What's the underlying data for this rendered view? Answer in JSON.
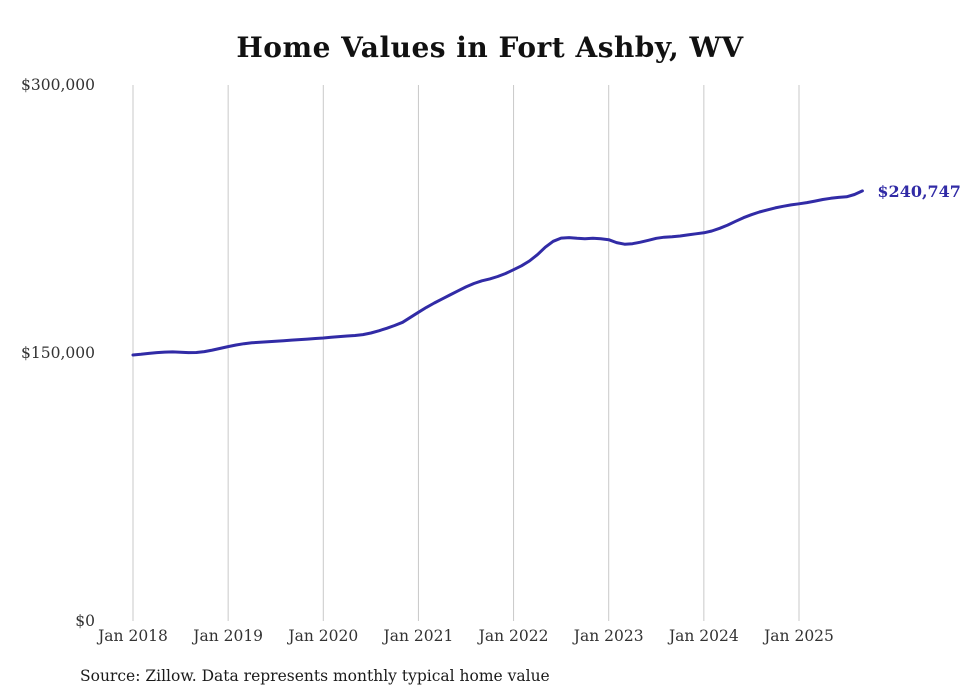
{
  "source_note": "Source: Zillow. Data represents monthly typical home value",
  "chart_data": {
    "type": "line",
    "title": "Home Values in Fort Ashby, WV",
    "series_name": "Monthly typical home value",
    "end_label": "$240,747",
    "line_color": "#312ba6",
    "grid": "vertical-only",
    "legend": "none",
    "ylim": [
      0,
      300000
    ],
    "y_ticks": [
      {
        "value": 0,
        "label": "$0"
      },
      {
        "value": 150000,
        "label": "$150,000"
      },
      {
        "value": 300000,
        "label": "$300,000"
      }
    ],
    "x_ticks": [
      "Jan 2018",
      "Jan 2019",
      "Jan 2020",
      "Jan 2021",
      "Jan 2022",
      "Jan 2023",
      "Jan 2024",
      "Jan 2025"
    ],
    "x": [
      "2018-01",
      "2018-02",
      "2018-03",
      "2018-04",
      "2018-05",
      "2018-06",
      "2018-07",
      "2018-08",
      "2018-09",
      "2018-10",
      "2018-11",
      "2018-12",
      "2019-01",
      "2019-02",
      "2019-03",
      "2019-04",
      "2019-05",
      "2019-06",
      "2019-07",
      "2019-08",
      "2019-09",
      "2019-10",
      "2019-11",
      "2019-12",
      "2020-01",
      "2020-02",
      "2020-03",
      "2020-04",
      "2020-05",
      "2020-06",
      "2020-07",
      "2020-08",
      "2020-09",
      "2020-10",
      "2020-11",
      "2020-12",
      "2021-01",
      "2021-02",
      "2021-03",
      "2021-04",
      "2021-05",
      "2021-06",
      "2021-07",
      "2021-08",
      "2021-09",
      "2021-10",
      "2021-11",
      "2021-12",
      "2022-01",
      "2022-02",
      "2022-03",
      "2022-04",
      "2022-05",
      "2022-06",
      "2022-07",
      "2022-08",
      "2022-09",
      "2022-10",
      "2022-11",
      "2022-12",
      "2023-01",
      "2023-02",
      "2023-03",
      "2023-04",
      "2023-05",
      "2023-06",
      "2023-07",
      "2023-08",
      "2023-09",
      "2023-10",
      "2023-11",
      "2023-12",
      "2024-01",
      "2024-02",
      "2024-03",
      "2024-04",
      "2024-05",
      "2024-06",
      "2024-07",
      "2024-08",
      "2024-09",
      "2024-10",
      "2024-11",
      "2024-12",
      "2025-01",
      "2025-02",
      "2025-03",
      "2025-04",
      "2025-05",
      "2025-06",
      "2025-07",
      "2025-08",
      "2025-09"
    ],
    "values": [
      148900,
      149300,
      149800,
      150200,
      150500,
      150600,
      150400,
      150200,
      150300,
      150800,
      151600,
      152600,
      153600,
      154500,
      155200,
      155700,
      156000,
      156300,
      156600,
      156900,
      157200,
      157500,
      157800,
      158100,
      158400,
      158800,
      159200,
      159500,
      159800,
      160300,
      161200,
      162400,
      163800,
      165400,
      167200,
      170000,
      172800,
      175500,
      178000,
      180300,
      182500,
      184800,
      187000,
      188900,
      190400,
      191500,
      192800,
      194500,
      196600,
      198800,
      201500,
      205000,
      209200,
      212500,
      214300,
      214600,
      214200,
      214000,
      214200,
      213900,
      213400,
      211800,
      210900,
      211200,
      212000,
      213100,
      214200,
      214800,
      215100,
      215500,
      216100,
      216700,
      217300,
      218300,
      219800,
      221600,
      223700,
      225700,
      227400,
      228900,
      230100,
      231200,
      232100,
      232900,
      233500,
      234200,
      235000,
      235900,
      236600,
      237100,
      237400,
      238700,
      240747
    ]
  }
}
